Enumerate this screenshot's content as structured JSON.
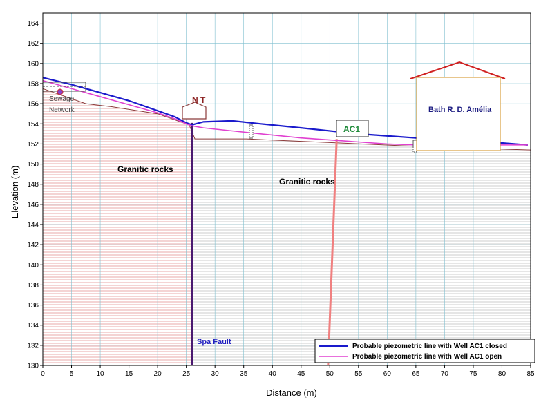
{
  "chart_data": {
    "type": "line",
    "xlabel": "Distance (m)",
    "ylabel": "Elevation (m)",
    "xlim": [
      0,
      85
    ],
    "ylim": [
      130,
      165
    ],
    "x_ticks": [
      0,
      5,
      10,
      15,
      20,
      25,
      30,
      35,
      40,
      45,
      50,
      55,
      60,
      65,
      70,
      75,
      80,
      85
    ],
    "y_ticks": [
      130,
      132,
      134,
      136,
      138,
      140,
      142,
      144,
      146,
      148,
      150,
      152,
      154,
      156,
      158,
      160,
      162,
      164
    ],
    "grid": true,
    "legend_position": "bottom-right",
    "series": [
      {
        "name": "Probable piezometric line with Well AC1 closed",
        "color": "#1a1acc",
        "x": [
          0,
          5,
          10,
          15,
          20,
          23,
          25,
          26,
          28,
          33,
          38,
          45,
          55,
          60,
          65,
          70,
          75,
          80,
          84.5
        ],
        "y": [
          158.6,
          157.9,
          157.1,
          156.3,
          155.3,
          154.7,
          154.1,
          153.9,
          154.2,
          154.3,
          154.0,
          153.6,
          153.0,
          152.8,
          152.6,
          152.3,
          152.2,
          152.1,
          151.9
        ]
      },
      {
        "name": "Probable piezometric line with Well AC1 open",
        "color": "#e040d0",
        "x": [
          0,
          5,
          10,
          15,
          20,
          23,
          25,
          26,
          28,
          33,
          38,
          45,
          55,
          60,
          65,
          70,
          75,
          80,
          84.5
        ],
        "y": [
          158.3,
          157.5,
          156.7,
          155.9,
          155.1,
          154.5,
          154.0,
          153.8,
          153.6,
          153.3,
          153.0,
          152.6,
          152.2,
          152.0,
          151.9,
          151.8,
          151.8,
          151.9,
          151.9
        ]
      }
    ],
    "annotations": {
      "sewage_line1": "Sewage",
      "sewage_line2": "Network",
      "nt": "N T",
      "ac1": "AC1",
      "bath": "Bath R. D. Amélia",
      "granitic_left": "Granitic rocks",
      "granitic_right": "Granitic rocks",
      "fault": "Spa Fault"
    },
    "terrain_surface": {
      "x": [
        0,
        7.5,
        12,
        20,
        25.5,
        26.5,
        35.5,
        63.7,
        85
      ],
      "y": [
        157.5,
        156.0,
        155.7,
        155.0,
        153.9,
        152.5,
        152.5,
        151.8,
        151.4
      ]
    },
    "fault_x": 26,
    "well_ac1_x": 51.2
  }
}
